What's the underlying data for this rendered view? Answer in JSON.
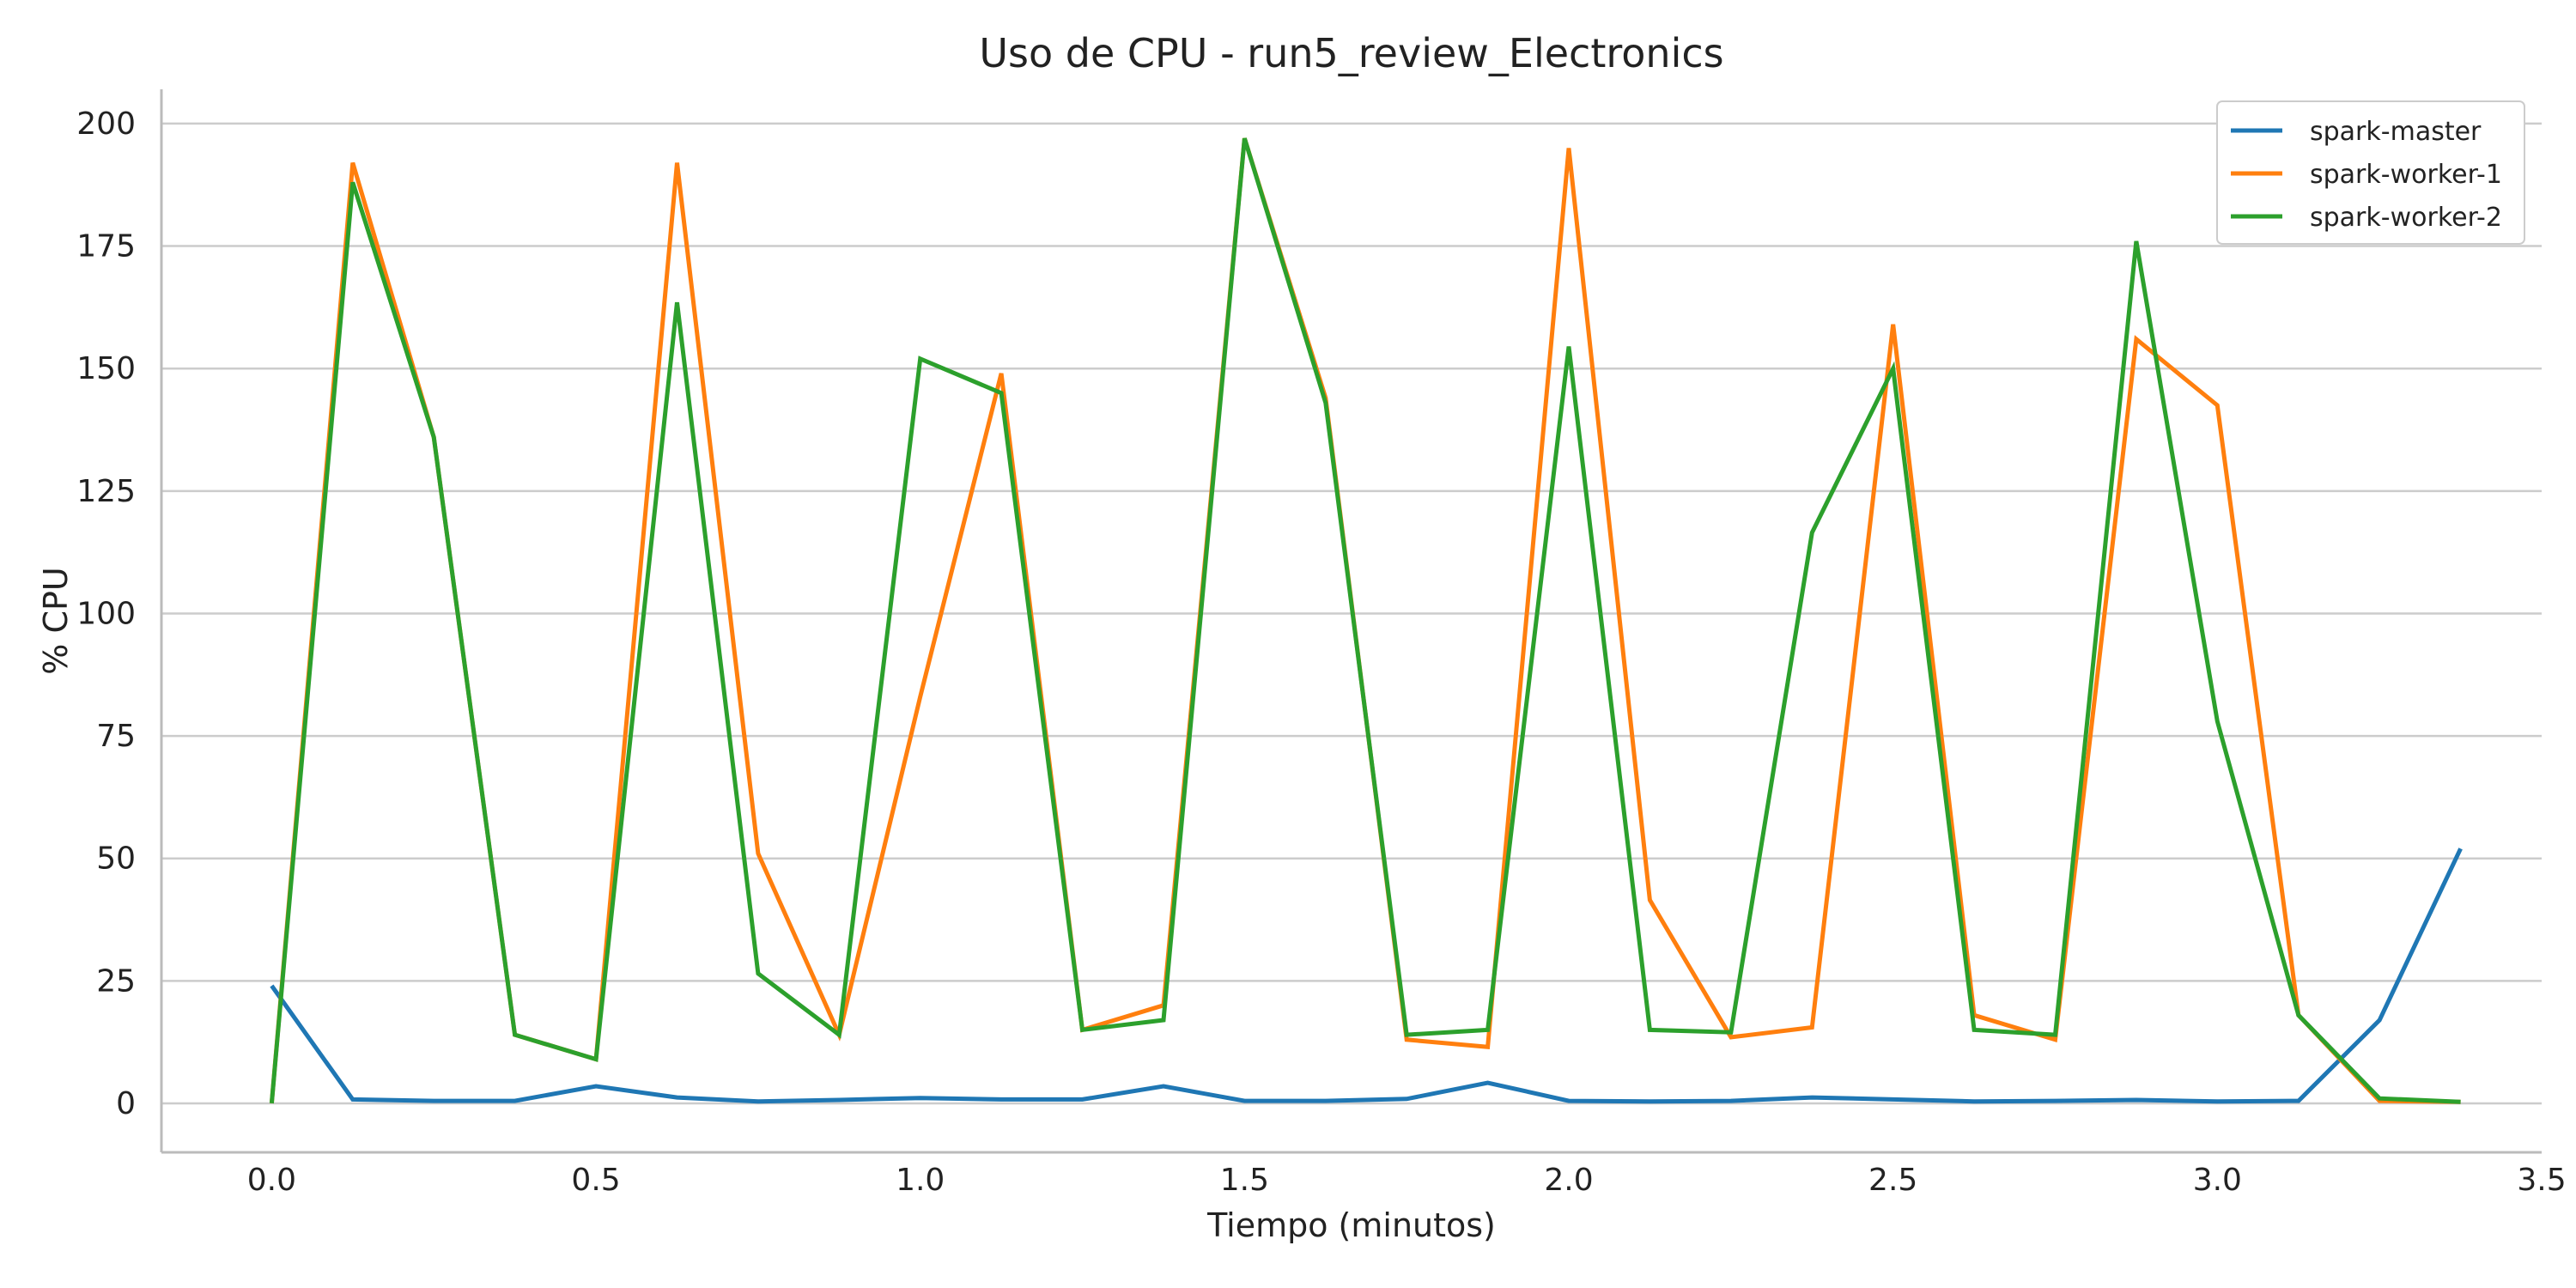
{
  "chart_data": {
    "type": "line",
    "title": "Uso de CPU - run5_review_Electronics",
    "xlabel": "Tiempo (minutos)",
    "ylabel": "% CPU",
    "xlim": [
      -0.17,
      3.5
    ],
    "ylim": [
      -10,
      207
    ],
    "xticks": [
      0.0,
      0.5,
      1.0,
      1.5,
      2.0,
      2.5,
      3.0,
      3.5
    ],
    "xtick_labels": [
      "0.0",
      "0.5",
      "1.0",
      "1.5",
      "2.0",
      "2.5",
      "3.0",
      "3.5"
    ],
    "yticks": [
      0,
      25,
      50,
      75,
      100,
      125,
      150,
      175,
      200
    ],
    "ytick_labels": [
      "0",
      "25",
      "50",
      "75",
      "100",
      "125",
      "150",
      "175",
      "200"
    ],
    "grid": "horizontal",
    "legend_position": "top-right",
    "x": [
      0.0,
      0.125,
      0.25,
      0.375,
      0.5,
      0.625,
      0.75,
      0.875,
      1.0,
      1.125,
      1.25,
      1.375,
      1.5,
      1.625,
      1.75,
      1.875,
      2.0,
      2.125,
      2.25,
      2.375,
      2.5,
      2.625,
      2.75,
      2.875,
      3.0,
      3.125,
      3.25,
      3.375
    ],
    "series": [
      {
        "name": "spark-master",
        "color": "#1f77b4",
        "values": [
          24,
          0.8,
          0.5,
          0.5,
          3.5,
          1.2,
          0.4,
          0.7,
          1.1,
          0.8,
          0.8,
          3.5,
          0.5,
          0.5,
          0.9,
          4.2,
          0.5,
          0.4,
          0.5,
          1.2,
          0.8,
          0.4,
          0.5,
          0.7,
          0.4,
          0.5,
          17,
          52
        ]
      },
      {
        "name": "spark-worker-1",
        "color": "#ff7f0e",
        "values": [
          0,
          192,
          136,
          14,
          9,
          192,
          51,
          14,
          83,
          149,
          15,
          20,
          197,
          144,
          13,
          11.5,
          195,
          41.5,
          13.5,
          15.5,
          159,
          18,
          13,
          156,
          142.5,
          18,
          0.5,
          0.3
        ]
      },
      {
        "name": "spark-worker-2",
        "color": "#2ca02c",
        "values": [
          0,
          188,
          136,
          14,
          9,
          163.5,
          26.5,
          14,
          152,
          145,
          15,
          17,
          197,
          143,
          14,
          15,
          154.5,
          15,
          14.5,
          116.5,
          150,
          15,
          14,
          176,
          78,
          18,
          1,
          0.3
        ]
      }
    ]
  }
}
